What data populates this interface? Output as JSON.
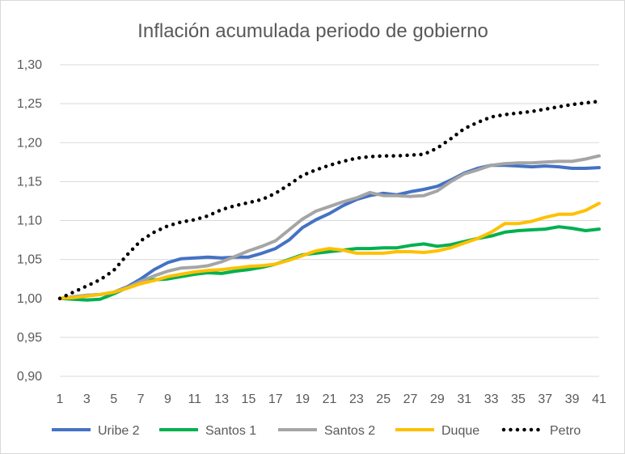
{
  "chart_data": {
    "type": "line",
    "title": "Inflación acumulada periodo de gobierno",
    "xlabel": "",
    "ylabel": "",
    "x": [
      1,
      2,
      3,
      4,
      5,
      6,
      7,
      8,
      9,
      10,
      11,
      12,
      13,
      14,
      15,
      16,
      17,
      18,
      19,
      20,
      21,
      22,
      23,
      24,
      25,
      26,
      27,
      28,
      29,
      30,
      31,
      32,
      33,
      34,
      35,
      36,
      37,
      38,
      39,
      40,
      41
    ],
    "x_tick_labels": [
      "1",
      "3",
      "5",
      "7",
      "9",
      "11",
      "13",
      "15",
      "17",
      "19",
      "21",
      "23",
      "25",
      "27",
      "29",
      "31",
      "33",
      "35",
      "37",
      "39",
      "41"
    ],
    "y_tick_labels": [
      "0,90",
      "0,95",
      "1,00",
      "1,05",
      "1,10",
      "1,15",
      "1,20",
      "1,25",
      "1,30"
    ],
    "ylim": [
      0.9,
      1.3
    ],
    "xlim": [
      1,
      41
    ],
    "grid": "horizontal",
    "legend_position": "bottom",
    "series": [
      {
        "name": "Uribe 2",
        "color": "#4472c4",
        "style": "solid",
        "values": [
          1.0,
          1.002,
          1.004,
          1.005,
          1.008,
          1.015,
          1.025,
          1.037,
          1.046,
          1.051,
          1.052,
          1.053,
          1.052,
          1.053,
          1.053,
          1.058,
          1.064,
          1.075,
          1.091,
          1.101,
          1.109,
          1.119,
          1.127,
          1.132,
          1.135,
          1.133,
          1.137,
          1.14,
          1.144,
          1.152,
          1.161,
          1.167,
          1.171,
          1.171,
          1.17,
          1.169,
          1.17,
          1.169,
          1.167,
          1.167,
          1.168
        ]
      },
      {
        "name": "Santos 1",
        "color": "#00b050",
        "style": "solid",
        "values": [
          1.0,
          0.999,
          0.998,
          0.999,
          1.006,
          1.014,
          1.021,
          1.024,
          1.025,
          1.028,
          1.031,
          1.033,
          1.032,
          1.035,
          1.037,
          1.04,
          1.044,
          1.05,
          1.056,
          1.058,
          1.06,
          1.062,
          1.064,
          1.064,
          1.065,
          1.065,
          1.068,
          1.07,
          1.067,
          1.069,
          1.073,
          1.077,
          1.08,
          1.085,
          1.087,
          1.088,
          1.089,
          1.092,
          1.09,
          1.087,
          1.089
        ]
      },
      {
        "name": "Santos 2",
        "color": "#a5a5a5",
        "style": "solid",
        "values": [
          1.0,
          1.002,
          1.004,
          1.005,
          1.008,
          1.014,
          1.022,
          1.029,
          1.035,
          1.039,
          1.04,
          1.042,
          1.047,
          1.054,
          1.061,
          1.067,
          1.074,
          1.088,
          1.102,
          1.112,
          1.118,
          1.124,
          1.129,
          1.136,
          1.132,
          1.132,
          1.131,
          1.132,
          1.138,
          1.15,
          1.16,
          1.165,
          1.171,
          1.173,
          1.174,
          1.174,
          1.175,
          1.176,
          1.176,
          1.179,
          1.183
        ]
      },
      {
        "name": "Duque",
        "color": "#ffc000",
        "style": "solid",
        "values": [
          1.0,
          1.001,
          1.003,
          1.005,
          1.008,
          1.013,
          1.019,
          1.023,
          1.028,
          1.031,
          1.034,
          1.036,
          1.037,
          1.039,
          1.041,
          1.042,
          1.044,
          1.049,
          1.055,
          1.061,
          1.064,
          1.062,
          1.058,
          1.058,
          1.058,
          1.06,
          1.06,
          1.059,
          1.061,
          1.065,
          1.071,
          1.077,
          1.085,
          1.096,
          1.096,
          1.099,
          1.104,
          1.108,
          1.108,
          1.113,
          1.122
        ]
      },
      {
        "name": "Petro",
        "color": "#000000",
        "style": "dotted",
        "values": [
          1.0,
          1.008,
          1.016,
          1.024,
          1.036,
          1.056,
          1.074,
          1.085,
          1.093,
          1.098,
          1.101,
          1.106,
          1.114,
          1.119,
          1.123,
          1.127,
          1.135,
          1.146,
          1.158,
          1.165,
          1.171,
          1.176,
          1.18,
          1.182,
          1.183,
          1.183,
          1.184,
          1.185,
          1.193,
          1.205,
          1.218,
          1.226,
          1.233,
          1.236,
          1.238,
          1.24,
          1.243,
          1.246,
          1.249,
          1.251,
          1.253
        ]
      }
    ]
  }
}
